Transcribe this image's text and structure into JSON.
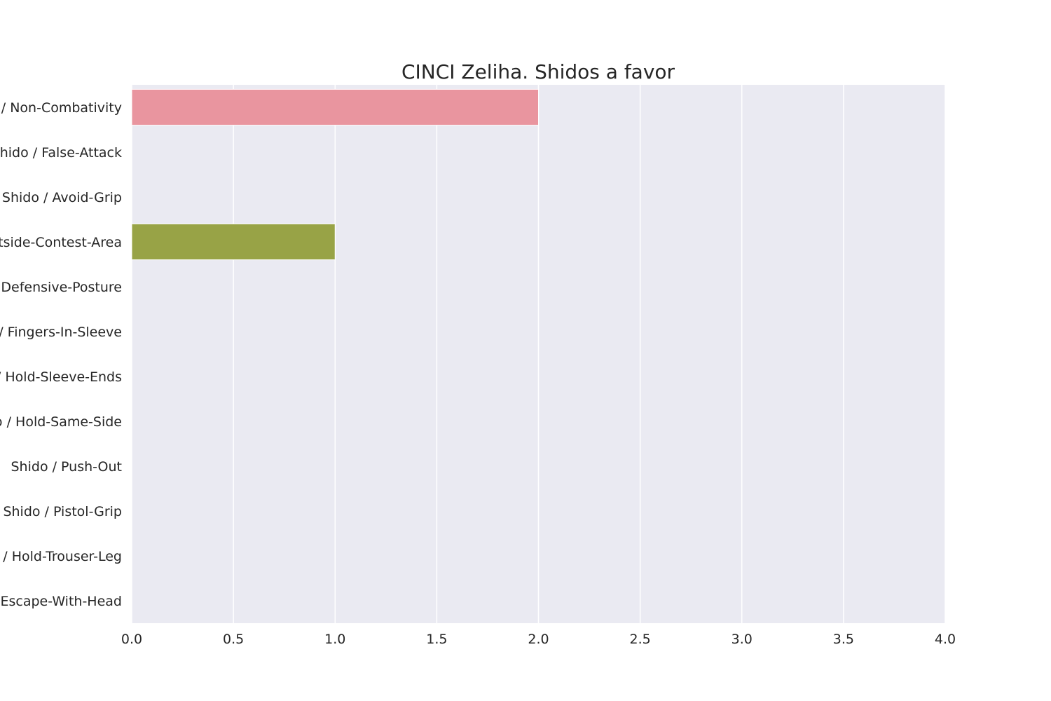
{
  "chart_data": {
    "type": "bar",
    "orientation": "horizontal",
    "title": "CINCI Zeliha. Shidos a favor",
    "xlabel": "",
    "ylabel": "",
    "xlim": [
      0,
      4
    ],
    "grid": true,
    "categories": [
      "Shido / Non-Combativity",
      "Shido / False-Attack",
      "Shido / Avoid-Grip",
      "Shido / Outside-Contest-Area",
      "Shido / Defensive-Posture",
      "Shido / Fingers-In-Sleeve",
      "Shido / Hold-Sleeve-Ends",
      "Shido / Hold-Same-Side",
      "Shido / Push-Out",
      "Shido / Pistol-Grip",
      "Shido / Hold-Trouser-Leg",
      "Shido / Escape-With-Head"
    ],
    "values": [
      2,
      0,
      0,
      1,
      0,
      0,
      0,
      0,
      0,
      0,
      0,
      0
    ],
    "x_ticks": [
      "0.0",
      "0.5",
      "1.0",
      "1.5",
      "2.0",
      "2.5",
      "3.0",
      "3.5",
      "4.0"
    ],
    "colors": {
      "plot_background": "#eaeaf2",
      "grid": "#ffffff",
      "bars": [
        "#e9959f",
        "#e5986e",
        "#cba25c",
        "#98a346",
        "#6eae4d",
        "#4fae7b",
        "#50ab96",
        "#52a9a9",
        "#57a9c7",
        "#8aa4e5",
        "#c697e8",
        "#e58fcf"
      ]
    }
  }
}
